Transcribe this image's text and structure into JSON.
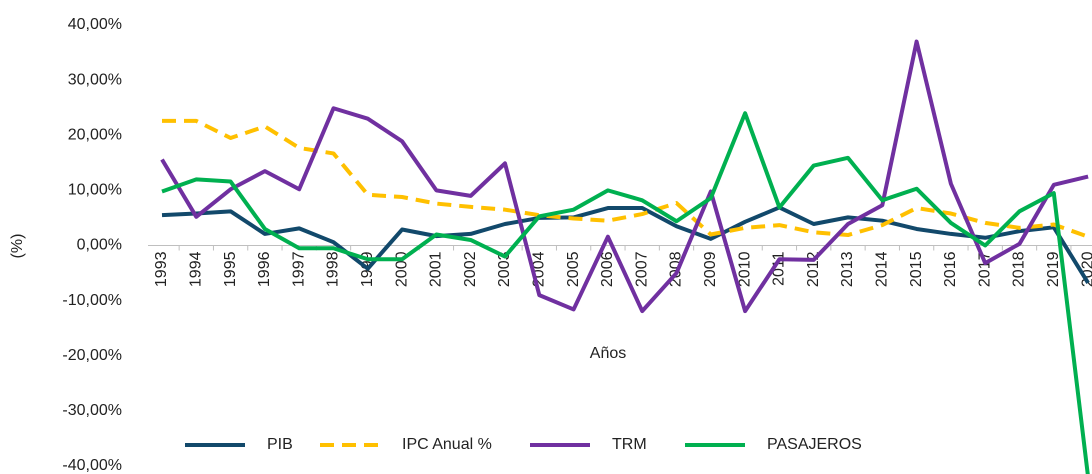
{
  "chart_data": {
    "type": "line",
    "x_label": "Años",
    "y_label": "(%)",
    "categories": [
      "1993",
      "1994",
      "1995",
      "1996",
      "1997",
      "1998",
      "1999",
      "2000",
      "2001",
      "2002",
      "2003",
      "2004",
      "2005",
      "2006",
      "2007",
      "2008",
      "2009",
      "2010",
      "2011",
      "2012",
      "2013",
      "2014",
      "2015",
      "2016",
      "2017",
      "2018",
      "2019",
      "2020"
    ],
    "series": [
      {
        "name": "PIB",
        "color": "#12496b",
        "line_style": "solid",
        "values": [
          5.5,
          5.8,
          6.2,
          2.1,
          3.1,
          0.6,
          -4.2,
          2.9,
          1.7,
          2.1,
          3.9,
          5.0,
          5.1,
          6.8,
          6.8,
          3.5,
          1.2,
          4.3,
          6.9,
          3.9,
          5.1,
          4.5,
          3.0,
          2.1,
          1.4,
          2.6,
          3.3,
          -6.8
        ]
      },
      {
        "name": "IPC Anual %",
        "color": "#ffc000",
        "line_style": "dashed",
        "values": [
          22.6,
          22.6,
          19.5,
          21.6,
          17.7,
          16.7,
          9.2,
          8.8,
          7.6,
          7.0,
          6.5,
          5.5,
          4.9,
          4.5,
          5.7,
          7.7,
          2.0,
          3.2,
          3.7,
          2.4,
          1.9,
          3.7,
          6.8,
          5.8,
          4.1,
          3.2,
          3.8,
          1.6
        ]
      },
      {
        "name": "TRM",
        "color": "#7030a0",
        "line_style": "solid",
        "values": [
          15.6,
          5.2,
          10.2,
          13.5,
          10.2,
          24.9,
          23.0,
          18.9,
          10.0,
          9.0,
          14.9,
          -9.0,
          -11.6,
          1.6,
          -11.9,
          -5.0,
          9.8,
          -11.9,
          -2.5,
          -2.6,
          3.9,
          7.3,
          37.0,
          11.2,
          -3.2,
          0.3,
          11.0,
          12.5
        ]
      },
      {
        "name": "PASAJEROS",
        "color": "#00b050",
        "line_style": "solid",
        "values": [
          9.8,
          12.0,
          11.6,
          3.0,
          -0.5,
          -0.5,
          -2.5,
          -2.5,
          2.0,
          1.0,
          -2.0,
          5.3,
          6.5,
          10.0,
          8.2,
          4.4,
          8.6,
          24.0,
          6.9,
          14.5,
          15.9,
          8.2,
          10.3,
          4.1,
          0.0,
          6.2,
          9.5,
          -42.0
        ]
      }
    ],
    "ylim": [
      -40,
      40
    ],
    "yticks": [
      {
        "value": 40,
        "label": "40,00%"
      },
      {
        "value": 30,
        "label": "30,00%"
      },
      {
        "value": 20,
        "label": "20,00%"
      },
      {
        "value": 10,
        "label": "10,00%"
      },
      {
        "value": 0,
        "label": "0,00%"
      },
      {
        "value": -10,
        "label": "-10,00%"
      },
      {
        "value": -20,
        "label": "-20,00%"
      },
      {
        "value": -30,
        "label": "-30,00%"
      },
      {
        "value": -40,
        "label": "-40,00%"
      }
    ],
    "grid": false,
    "legend": "bottom"
  }
}
